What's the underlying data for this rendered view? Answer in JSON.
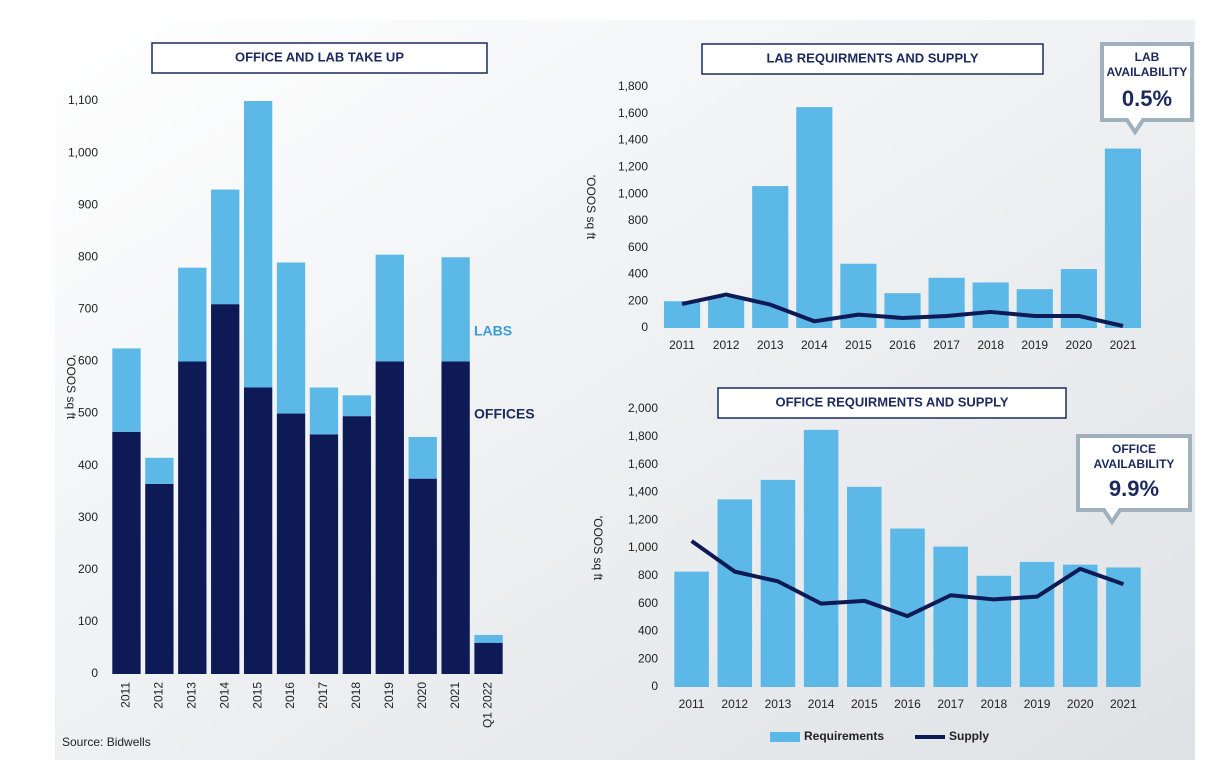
{
  "chart_data": [
    {
      "type": "stacked_bar",
      "title": "OFFICE AND LAB TAKE UP",
      "y_label": "'OOOS sq ft",
      "source": "Source: Bidwells",
      "categories": [
        "2011",
        "2012",
        "2013",
        "2014",
        "2015",
        "2016",
        "2017",
        "2018",
        "2019",
        "2020",
        "2021",
        "Q1 2022"
      ],
      "series": [
        {
          "name": "OFFICES",
          "color": "#0d1a55",
          "values": [
            465,
            365,
            600,
            710,
            550,
            500,
            460,
            495,
            600,
            375,
            600,
            60
          ]
        },
        {
          "name": "LABS",
          "color": "#5cb8e6",
          "values": [
            160,
            50,
            180,
            220,
            550,
            290,
            90,
            40,
            205,
            80,
            200,
            15
          ]
        }
      ],
      "ylim": [
        0,
        1100
      ],
      "yticks": [
        0,
        100,
        200,
        300,
        400,
        500,
        600,
        700,
        800,
        900,
        {
          "value": 1000,
          "label": "1,000"
        },
        {
          "value": 1100,
          "label": "1,100"
        }
      ]
    },
    {
      "type": "combo",
      "title": "LAB REQUIRMENTS AND SUPPLY",
      "y_label": "'OOOS sq ft",
      "callout": [
        "LAB",
        "AVAILABILITY",
        "0.5%"
      ],
      "categories": [
        "2011",
        "2012",
        "2013",
        "2014",
        "2015",
        "2016",
        "2017",
        "2018",
        "2019",
        "2020",
        "2021"
      ],
      "series": [
        {
          "type": "bar",
          "color": "#5cb8e6",
          "values": [
            200,
            230,
            1060,
            1650,
            480,
            260,
            375,
            340,
            290,
            440,
            1340
          ]
        },
        {
          "type": "line",
          "color": "#0d1a55",
          "values": [
            180,
            250,
            175,
            50,
            100,
            75,
            90,
            120,
            90,
            90,
            15
          ]
        }
      ],
      "ylim": [
        0,
        1800
      ],
      "yticks": [
        0,
        200,
        400,
        600,
        800,
        {
          "value": 1000,
          "label": "1,000"
        },
        {
          "value": 1200,
          "label": "1,200"
        },
        {
          "value": 1400,
          "label": "1,400"
        },
        {
          "value": 1600,
          "label": "1,600"
        },
        {
          "value": 1800,
          "label": "1,800"
        }
      ]
    },
    {
      "type": "combo",
      "title": "OFFICE REQUIRMENTS AND SUPPLY",
      "y_label": "'OOOS sq ft",
      "callout": [
        "OFFICE",
        "AVAILABILITY",
        "9.9%"
      ],
      "legend": "bottom",
      "categories": [
        "2011",
        "2012",
        "2013",
        "2014",
        "2015",
        "2016",
        "2017",
        "2018",
        "2019",
        "2020",
        "2021"
      ],
      "series": [
        {
          "name": "Requirements",
          "type": "bar",
          "color": "#5cb8e6",
          "values": [
            830,
            1350,
            1490,
            1850,
            1440,
            1140,
            1010,
            800,
            900,
            880,
            860
          ]
        },
        {
          "name": "Supply",
          "type": "line",
          "color": "#0d1a55",
          "values": [
            1050,
            830,
            760,
            600,
            620,
            510,
            660,
            630,
            650,
            850,
            740
          ]
        }
      ],
      "ylim": [
        0,
        2000
      ],
      "yticks": [
        0,
        200,
        400,
        600,
        800,
        {
          "value": 1000,
          "label": "1,000"
        },
        {
          "value": 1200,
          "label": "1,200"
        },
        {
          "value": 1400,
          "label": "1,400"
        },
        {
          "value": 1600,
          "label": "1,600"
        },
        {
          "value": 1800,
          "label": "1,800"
        },
        {
          "value": 2000,
          "label": "2,000"
        }
      ]
    }
  ]
}
